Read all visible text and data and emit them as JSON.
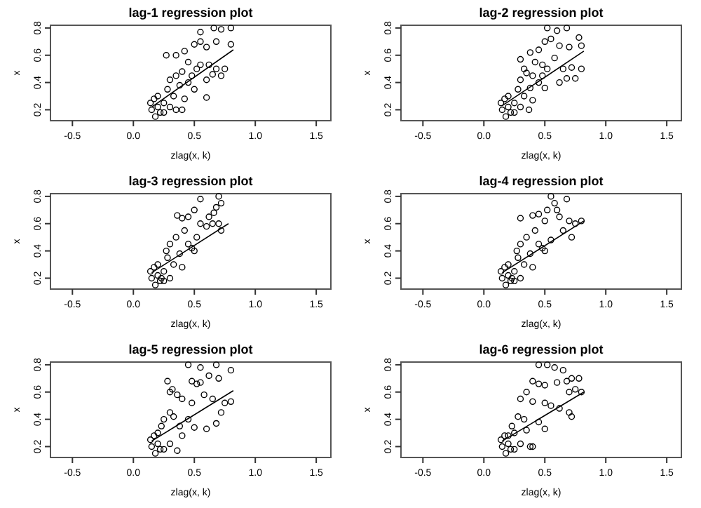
{
  "chart_data": [
    {
      "type": "scatter",
      "title": "lag-1 regression plot",
      "xlabel": "zlag(x, k)",
      "ylabel": "x",
      "xlim": [
        -0.68,
        1.62
      ],
      "ylim": [
        0.12,
        0.82
      ],
      "xticks": [
        {
          "value": -0.5,
          "label": "-0.5"
        },
        {
          "value": 0,
          "label": "0.0"
        },
        {
          "value": 0.5,
          "label": "0.5"
        },
        {
          "value": 1,
          "label": "1.0"
        },
        {
          "value": 1.5,
          "label": "1.5"
        }
      ],
      "yticks": [
        {
          "value": 0.2,
          "label": "0.2"
        },
        {
          "value": 0.4,
          "label": "0.4"
        },
        {
          "value": 0.6,
          "label": "0.6"
        },
        {
          "value": 0.8,
          "label": "0.8"
        }
      ],
      "series": [
        {
          "type": "scatter",
          "marker": "circle",
          "color": "#000000",
          "x": [
            0.55,
            0.66,
            0.72,
            0.8,
            0.68,
            0.8,
            0.5,
            0.55,
            0.6,
            0.42,
            0.35,
            0.27,
            0.45,
            0.55,
            0.62,
            0.68,
            0.75,
            0.72,
            0.65,
            0.6,
            0.4,
            0.35,
            0.3,
            0.45,
            0.5,
            0.28,
            0.33,
            0.42,
            0.6,
            0.35,
            0.4,
            0.25,
            0.2,
            0.15,
            0.18,
            0.22,
            0.14,
            0.2,
            0.25,
            0.17,
            0.3,
            0.38,
            0.48,
            0.52
          ],
          "values": [
            0.77,
            0.8,
            0.79,
            0.8,
            0.7,
            0.68,
            0.68,
            0.7,
            0.66,
            0.63,
            0.6,
            0.6,
            0.55,
            0.53,
            0.53,
            0.5,
            0.5,
            0.45,
            0.46,
            0.42,
            0.48,
            0.45,
            0.42,
            0.4,
            0.35,
            0.35,
            0.3,
            0.28,
            0.29,
            0.2,
            0.2,
            0.25,
            0.3,
            0.2,
            0.15,
            0.18,
            0.25,
            0.22,
            0.18,
            0.28,
            0.22,
            0.38,
            0.45,
            0.5
          ]
        },
        {
          "type": "line",
          "marker": "none",
          "color": "#000000",
          "x": [
            0.15,
            0.82
          ],
          "values": [
            0.22,
            0.64
          ]
        }
      ]
    },
    {
      "type": "scatter",
      "title": "lag-2 regression plot",
      "xlabel": "zlag(x, k)",
      "ylabel": "x",
      "xlim": [
        -0.68,
        1.62
      ],
      "ylim": [
        0.12,
        0.82
      ],
      "xticks": [
        {
          "value": -0.5,
          "label": "-0.5"
        },
        {
          "value": 0,
          "label": "0.0"
        },
        {
          "value": 0.5,
          "label": "0.5"
        },
        {
          "value": 1,
          "label": "1.0"
        },
        {
          "value": 1.5,
          "label": "1.5"
        }
      ],
      "yticks": [
        {
          "value": 0.2,
          "label": "0.2"
        },
        {
          "value": 0.4,
          "label": "0.4"
        },
        {
          "value": 0.6,
          "label": "0.6"
        },
        {
          "value": 0.8,
          "label": "0.8"
        }
      ],
      "series": [
        {
          "type": "scatter",
          "marker": "circle",
          "color": "#000000",
          "x": [
            0.52,
            0.6,
            0.68,
            0.78,
            0.5,
            0.55,
            0.62,
            0.7,
            0.8,
            0.45,
            0.38,
            0.3,
            0.42,
            0.48,
            0.58,
            0.65,
            0.72,
            0.8,
            0.62,
            0.68,
            0.75,
            0.4,
            0.35,
            0.3,
            0.45,
            0.5,
            0.28,
            0.33,
            0.4,
            0.37,
            0.25,
            0.2,
            0.15,
            0.18,
            0.22,
            0.14,
            0.2,
            0.25,
            0.17,
            0.3,
            0.38,
            0.48,
            0.52,
            0.33
          ],
          "values": [
            0.8,
            0.78,
            0.8,
            0.73,
            0.7,
            0.72,
            0.67,
            0.66,
            0.67,
            0.64,
            0.62,
            0.57,
            0.55,
            0.53,
            0.58,
            0.5,
            0.51,
            0.5,
            0.4,
            0.43,
            0.43,
            0.45,
            0.47,
            0.42,
            0.4,
            0.36,
            0.35,
            0.3,
            0.27,
            0.2,
            0.25,
            0.3,
            0.2,
            0.15,
            0.18,
            0.25,
            0.22,
            0.18,
            0.28,
            0.22,
            0.36,
            0.45,
            0.5,
            0.5
          ]
        },
        {
          "type": "line",
          "marker": "none",
          "color": "#000000",
          "x": [
            0.15,
            0.82
          ],
          "values": [
            0.23,
            0.63
          ]
        }
      ]
    },
    {
      "type": "scatter",
      "title": "lag-3 regression plot",
      "xlabel": "zlag(x, k)",
      "ylabel": "x",
      "xlim": [
        -0.68,
        1.62
      ],
      "ylim": [
        0.12,
        0.82
      ],
      "xticks": [
        {
          "value": -0.5,
          "label": "-0.5"
        },
        {
          "value": 0,
          "label": "0.0"
        },
        {
          "value": 0.5,
          "label": "0.5"
        },
        {
          "value": 1,
          "label": "1.0"
        },
        {
          "value": 1.5,
          "label": "1.5"
        }
      ],
      "yticks": [
        {
          "value": 0.2,
          "label": "0.2"
        },
        {
          "value": 0.4,
          "label": "0.4"
        },
        {
          "value": 0.6,
          "label": "0.6"
        },
        {
          "value": 0.8,
          "label": "0.8"
        }
      ],
      "series": [
        {
          "type": "scatter",
          "marker": "circle",
          "color": "#000000",
          "x": [
            0.55,
            0.7,
            0.72,
            0.68,
            0.66,
            0.62,
            0.5,
            0.45,
            0.4,
            0.36,
            0.55,
            0.6,
            0.65,
            0.7,
            0.72,
            0.42,
            0.35,
            0.3,
            0.45,
            0.5,
            0.28,
            0.33,
            0.4,
            0.25,
            0.2,
            0.15,
            0.18,
            0.22,
            0.14,
            0.2,
            0.25,
            0.17,
            0.3,
            0.38,
            0.48,
            0.52,
            0.27,
            0.23
          ],
          "values": [
            0.78,
            0.8,
            0.75,
            0.72,
            0.68,
            0.65,
            0.7,
            0.65,
            0.64,
            0.66,
            0.6,
            0.58,
            0.6,
            0.6,
            0.55,
            0.55,
            0.5,
            0.45,
            0.45,
            0.4,
            0.35,
            0.3,
            0.28,
            0.25,
            0.3,
            0.2,
            0.15,
            0.18,
            0.25,
            0.22,
            0.18,
            0.28,
            0.2,
            0.38,
            0.42,
            0.5,
            0.4,
            0.2
          ]
        },
        {
          "type": "line",
          "marker": "none",
          "color": "#000000",
          "x": [
            0.15,
            0.78
          ],
          "values": [
            0.24,
            0.6
          ]
        }
      ]
    },
    {
      "type": "scatter",
      "title": "lag-4 regression plot",
      "xlabel": "zlag(x, k)",
      "ylabel": "x",
      "xlim": [
        -0.68,
        1.62
      ],
      "ylim": [
        0.12,
        0.82
      ],
      "xticks": [
        {
          "value": -0.5,
          "label": "-0.5"
        },
        {
          "value": 0,
          "label": "0.0"
        },
        {
          "value": 0.5,
          "label": "0.5"
        },
        {
          "value": 1,
          "label": "1.0"
        },
        {
          "value": 1.5,
          "label": "1.5"
        }
      ],
      "yticks": [
        {
          "value": 0.2,
          "label": "0.2"
        },
        {
          "value": 0.4,
          "label": "0.4"
        },
        {
          "value": 0.6,
          "label": "0.6"
        },
        {
          "value": 0.8,
          "label": "0.8"
        }
      ],
      "series": [
        {
          "type": "scatter",
          "marker": "circle",
          "color": "#000000",
          "x": [
            0.55,
            0.58,
            0.68,
            0.52,
            0.6,
            0.45,
            0.4,
            0.3,
            0.5,
            0.62,
            0.7,
            0.75,
            0.8,
            0.65,
            0.72,
            0.42,
            0.35,
            0.3,
            0.45,
            0.5,
            0.28,
            0.33,
            0.4,
            0.25,
            0.2,
            0.15,
            0.18,
            0.22,
            0.14,
            0.2,
            0.25,
            0.17,
            0.3,
            0.38,
            0.48,
            0.55,
            0.27,
            0.23
          ],
          "values": [
            0.8,
            0.75,
            0.78,
            0.7,
            0.7,
            0.67,
            0.66,
            0.64,
            0.62,
            0.65,
            0.62,
            0.6,
            0.62,
            0.55,
            0.5,
            0.55,
            0.5,
            0.45,
            0.45,
            0.4,
            0.35,
            0.3,
            0.28,
            0.25,
            0.3,
            0.2,
            0.15,
            0.18,
            0.25,
            0.22,
            0.18,
            0.28,
            0.2,
            0.38,
            0.42,
            0.48,
            0.4,
            0.2
          ]
        },
        {
          "type": "line",
          "marker": "none",
          "color": "#000000",
          "x": [
            0.15,
            0.82
          ],
          "values": [
            0.24,
            0.62
          ]
        }
      ]
    },
    {
      "type": "scatter",
      "title": "lag-5 regression plot",
      "xlabel": "zlag(x, k)",
      "ylabel": "x",
      "xlim": [
        -0.68,
        1.62
      ],
      "ylim": [
        0.12,
        0.82
      ],
      "xticks": [
        {
          "value": -0.5,
          "label": "-0.5"
        },
        {
          "value": 0,
          "label": "0.0"
        },
        {
          "value": 0.5,
          "label": "0.5"
        },
        {
          "value": 1,
          "label": "1.0"
        },
        {
          "value": 1.5,
          "label": "1.5"
        }
      ],
      "yticks": [
        {
          "value": 0.2,
          "label": "0.2"
        },
        {
          "value": 0.4,
          "label": "0.4"
        },
        {
          "value": 0.6,
          "label": "0.6"
        },
        {
          "value": 0.8,
          "label": "0.8"
        }
      ],
      "series": [
        {
          "type": "scatter",
          "marker": "circle",
          "color": "#000000",
          "x": [
            0.45,
            0.55,
            0.68,
            0.8,
            0.7,
            0.62,
            0.48,
            0.52,
            0.55,
            0.28,
            0.3,
            0.32,
            0.36,
            0.4,
            0.48,
            0.58,
            0.65,
            0.75,
            0.8,
            0.72,
            0.68,
            0.6,
            0.5,
            0.45,
            0.3,
            0.25,
            0.2,
            0.15,
            0.18,
            0.22,
            0.14,
            0.2,
            0.25,
            0.17,
            0.3,
            0.38,
            0.4,
            0.33,
            0.36,
            0.23
          ],
          "values": [
            0.8,
            0.78,
            0.8,
            0.76,
            0.7,
            0.72,
            0.68,
            0.66,
            0.67,
            0.68,
            0.6,
            0.62,
            0.58,
            0.55,
            0.52,
            0.58,
            0.55,
            0.52,
            0.53,
            0.45,
            0.37,
            0.33,
            0.34,
            0.4,
            0.45,
            0.4,
            0.3,
            0.2,
            0.15,
            0.18,
            0.25,
            0.22,
            0.18,
            0.28,
            0.22,
            0.35,
            0.28,
            0.42,
            0.17,
            0.35
          ]
        },
        {
          "type": "line",
          "marker": "none",
          "color": "#000000",
          "x": [
            0.15,
            0.82
          ],
          "values": [
            0.24,
            0.61
          ]
        }
      ]
    },
    {
      "type": "scatter",
      "title": "lag-6 regression plot",
      "xlabel": "zlag(x, k)",
      "ylabel": "x",
      "xlim": [
        -0.68,
        1.62
      ],
      "ylim": [
        0.12,
        0.82
      ],
      "xticks": [
        {
          "value": -0.5,
          "label": "-0.5"
        },
        {
          "value": 0,
          "label": "0.0"
        },
        {
          "value": 0.5,
          "label": "0.5"
        },
        {
          "value": 1,
          "label": "1.0"
        },
        {
          "value": 1.5,
          "label": "1.5"
        }
      ],
      "yticks": [
        {
          "value": 0.2,
          "label": "0.2"
        },
        {
          "value": 0.4,
          "label": "0.4"
        },
        {
          "value": 0.6,
          "label": "0.6"
        },
        {
          "value": 0.8,
          "label": "0.8"
        }
      ],
      "series": [
        {
          "type": "scatter",
          "marker": "circle",
          "color": "#000000",
          "x": [
            0.45,
            0.52,
            0.58,
            0.65,
            0.72,
            0.68,
            0.78,
            0.4,
            0.45,
            0.5,
            0.6,
            0.7,
            0.75,
            0.8,
            0.35,
            0.3,
            0.4,
            0.5,
            0.55,
            0.62,
            0.7,
            0.72,
            0.28,
            0.33,
            0.45,
            0.5,
            0.35,
            0.25,
            0.2,
            0.15,
            0.18,
            0.22,
            0.14,
            0.2,
            0.25,
            0.17,
            0.3,
            0.38,
            0.4,
            0.23
          ],
          "values": [
            0.8,
            0.8,
            0.78,
            0.76,
            0.7,
            0.68,
            0.7,
            0.68,
            0.66,
            0.65,
            0.67,
            0.6,
            0.62,
            0.6,
            0.6,
            0.55,
            0.53,
            0.52,
            0.5,
            0.48,
            0.45,
            0.42,
            0.42,
            0.4,
            0.38,
            0.33,
            0.32,
            0.3,
            0.28,
            0.2,
            0.15,
            0.18,
            0.25,
            0.22,
            0.18,
            0.28,
            0.22,
            0.2,
            0.2,
            0.35
          ]
        },
        {
          "type": "line",
          "marker": "none",
          "color": "#000000",
          "x": [
            0.15,
            0.82
          ],
          "values": [
            0.24,
            0.6
          ]
        }
      ]
    }
  ]
}
